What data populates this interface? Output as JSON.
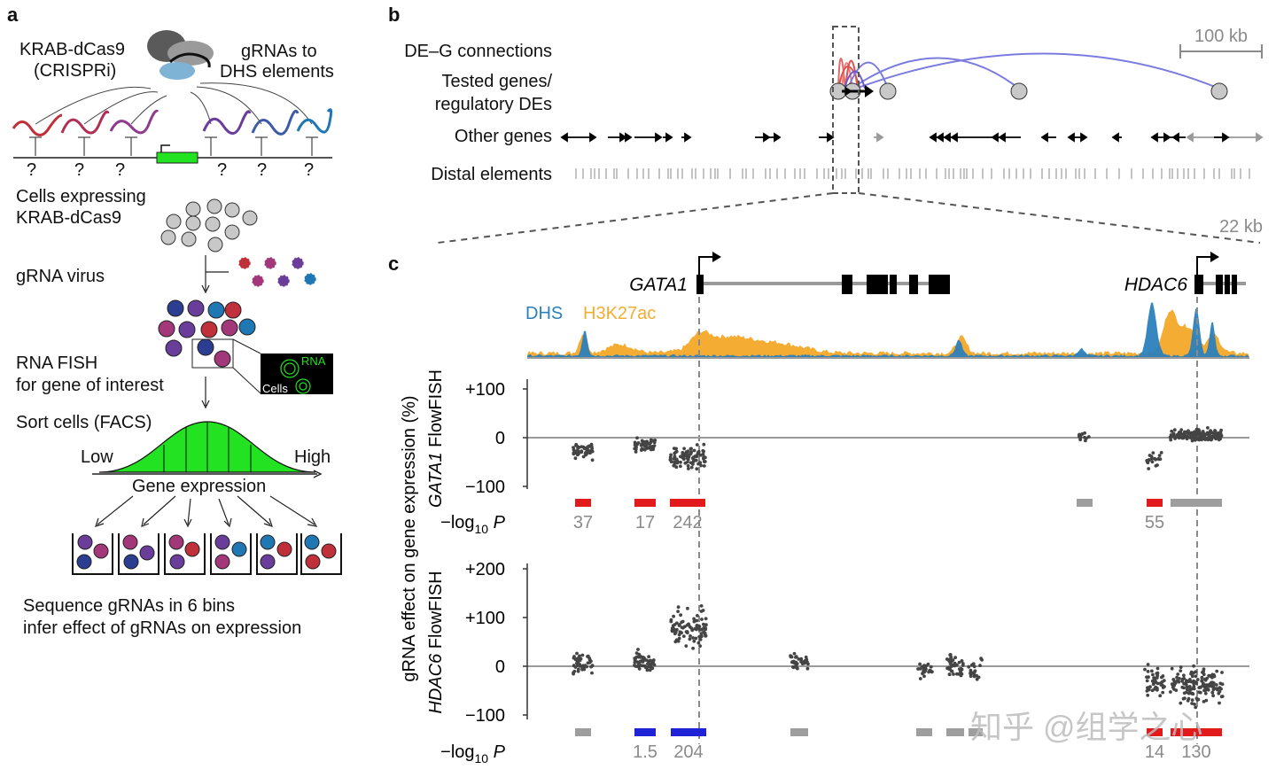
{
  "panel_a": {
    "label": "a",
    "krab_label": [
      "KRAB-dCas9",
      "(CRISPRi)"
    ],
    "grna_label": [
      "gRNAs to",
      "DHS elements"
    ],
    "question_marks": [
      "?",
      "?",
      "?",
      "?",
      "?",
      "?"
    ],
    "cells_label": [
      "Cells expressing",
      "KRAB-dCas9"
    ],
    "virus_label": "gRNA virus",
    "fish_label": [
      "RNA FISH",
      "for gene of interest"
    ],
    "inset_rna": "RNA",
    "inset_cells": "Cells",
    "sort_label": "Sort cells (FACS)",
    "low": "Low",
    "high": "High",
    "axis_label": "Gene expression",
    "footer": [
      "Sequence gRNAs in 6 bins",
      "infer effect of gRNAs on expression"
    ],
    "colors": {
      "red": "#c0303a",
      "magenta": "#a23779",
      "purple": "#6a3d9a",
      "blue": "#1f78b4",
      "navy": "#2c3e91",
      "green": "#22e222",
      "gray": "#c8c8c8"
    }
  },
  "panel_b": {
    "label": "b",
    "tracks": [
      "DE–G connections",
      "Tested genes/",
      "regulatory DEs",
      "Other genes",
      "Distal elements"
    ],
    "scale_label": "100 kb",
    "zoom_label": "22 kb"
  },
  "panel_c": {
    "label": "c",
    "gene1": "GATA1",
    "gene2": "HDAC6",
    "legend_dhs": "DHS",
    "legend_h3": "H3K27ac",
    "dhs_color": "#2b7fbd",
    "h3_color": "#f5ac32",
    "y_title": "gRNA effect on gene expression (%)",
    "plot1": {
      "ylabel_gene": "GATA1",
      "ylabel_rest": "FlowFISH",
      "ticks": [
        "+100",
        "0",
        "−100"
      ],
      "tick_values": [
        100,
        0,
        -100
      ],
      "logp_label": "−log",
      "logp_sub": "10",
      "logp_var": "P",
      "bars": [
        {
          "color": "#e31a1c",
          "value": "37"
        },
        {
          "color": "#e31a1c",
          "value": "17"
        },
        {
          "color": "#e31a1c",
          "value": "242"
        },
        {
          "color": "#9e9e9e",
          "value": ""
        },
        {
          "color": "#e31a1c",
          "value": "55"
        },
        {
          "color": "#9e9e9e",
          "value": ""
        }
      ],
      "clusters": [
        {
          "center": -25,
          "spread": 20
        },
        {
          "center": -15,
          "spread": 18
        },
        {
          "center": -40,
          "spread": 30
        },
        {
          "center": 0,
          "spread": 15
        },
        {
          "center": -45,
          "spread": 20
        },
        {
          "center": 5,
          "spread": 15
        }
      ]
    },
    "plot2": {
      "ylabel_gene": "HDAC6",
      "ylabel_rest": "FlowFISH",
      "ticks": [
        "+200",
        "+100",
        "0",
        "−100"
      ],
      "tick_values": [
        200,
        100,
        0,
        -100
      ],
      "logp_label": "−log",
      "logp_sub": "10",
      "logp_var": "P",
      "bars": [
        {
          "color": "#9e9e9e",
          "value": ""
        },
        {
          "color": "#1f22d6",
          "value": "1.5"
        },
        {
          "color": "#1f22d6",
          "value": "204"
        },
        {
          "color": "#9e9e9e",
          "value": ""
        },
        {
          "color": "#9e9e9e",
          "value": ""
        },
        {
          "color": "#9e9e9e",
          "value": ""
        },
        {
          "color": "#9e9e9e",
          "value": ""
        },
        {
          "color": "#e31a1c",
          "value": "14"
        },
        {
          "color": "#e31a1c",
          "value": "130"
        }
      ],
      "clusters": [
        {
          "center": 5,
          "spread": 25
        },
        {
          "center": 10,
          "spread": 25
        },
        {
          "center": 80,
          "spread": 45
        },
        {
          "center": 10,
          "spread": 20
        },
        {
          "center": -5,
          "spread": 25
        },
        {
          "center": 0,
          "spread": 25
        },
        {
          "center": -10,
          "spread": 25
        },
        {
          "center": -30,
          "spread": 35
        },
        {
          "center": -40,
          "spread": 40
        }
      ]
    }
  },
  "watermark": "知乎 @组学之心"
}
